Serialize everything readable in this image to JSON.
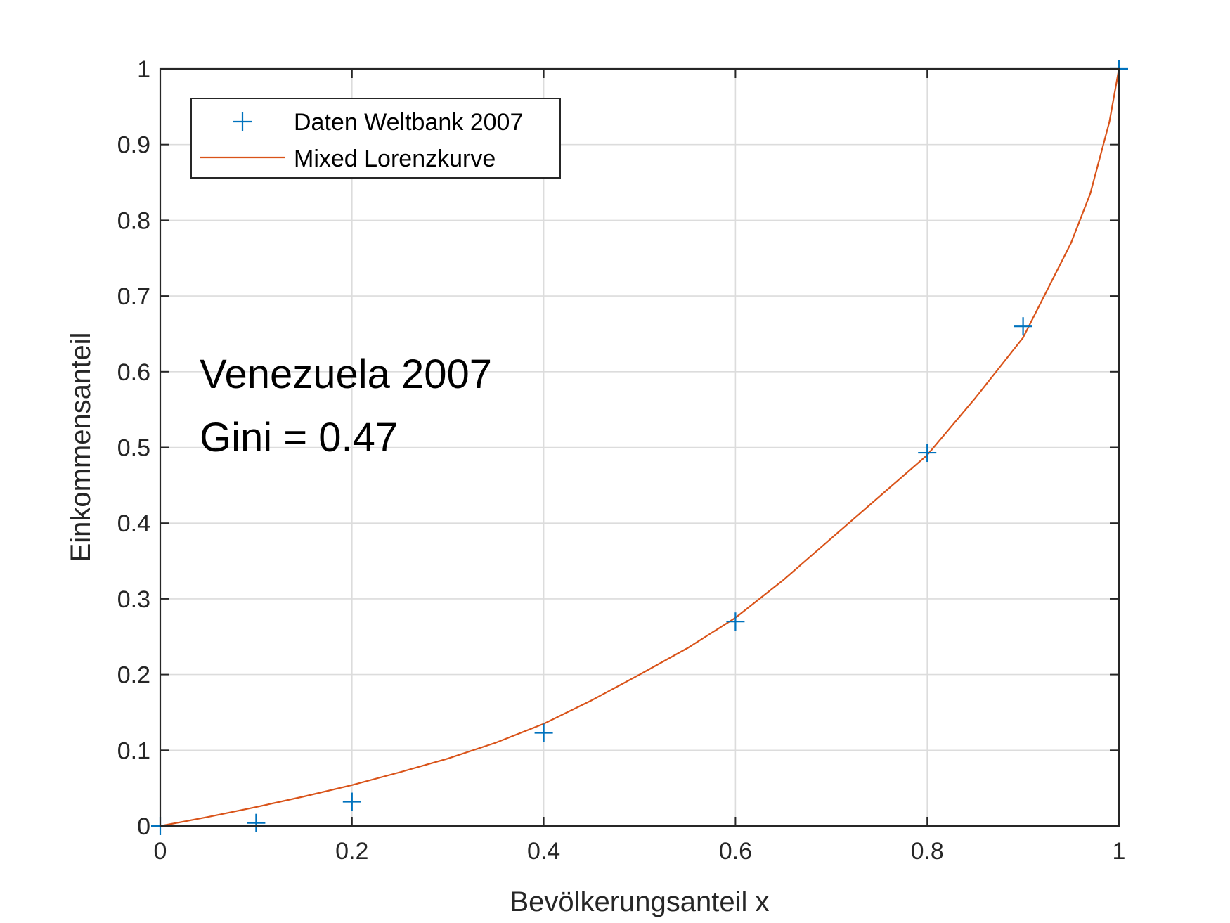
{
  "chart_data": {
    "type": "scatter",
    "xlabel": "Bevölkerungsanteil x",
    "ylabel": "Einkommensanteil",
    "xlim": [
      0,
      1
    ],
    "ylim": [
      0,
      1
    ],
    "xticks": [
      0,
      0.2,
      0.4,
      0.6,
      0.8,
      1
    ],
    "xtick_labels": [
      "0",
      "0.2",
      "0.4",
      "0.6",
      "0.8",
      "1"
    ],
    "yticks": [
      0,
      0.1,
      0.2,
      0.3,
      0.4,
      0.5,
      0.6,
      0.7,
      0.8,
      0.9,
      1
    ],
    "ytick_labels": [
      "0",
      "0.1",
      "0.2",
      "0.3",
      "0.4",
      "0.5",
      "0.6",
      "0.7",
      "0.8",
      "0.9",
      "1"
    ],
    "grid": true,
    "legend_position": "top-left",
    "annotations": [
      "Venezuela 2007",
      "Gini = 0.47"
    ],
    "series": [
      {
        "name": "Daten Weltbank 2007",
        "type": "scatter",
        "marker": "plus",
        "color": "#0072BD",
        "x": [
          0,
          0.1,
          0.2,
          0.4,
          0.6,
          0.8,
          0.9,
          1
        ],
        "y": [
          0,
          0.004,
          0.032,
          0.123,
          0.27,
          0.493,
          0.66,
          1
        ]
      },
      {
        "name": "Mixed Lorenzkurve",
        "type": "line",
        "color": "#D95319",
        "x": [
          0,
          0.05,
          0.1,
          0.15,
          0.2,
          0.25,
          0.3,
          0.35,
          0.4,
          0.45,
          0.5,
          0.55,
          0.6,
          0.65,
          0.7,
          0.75,
          0.8,
          0.85,
          0.9,
          0.95,
          0.97,
          0.99,
          1
        ],
        "y": [
          0,
          0.012,
          0.025,
          0.039,
          0.054,
          0.071,
          0.089,
          0.11,
          0.135,
          0.166,
          0.2,
          0.235,
          0.275,
          0.325,
          0.38,
          0.435,
          0.49,
          0.565,
          0.645,
          0.77,
          0.835,
          0.93,
          1
        ]
      }
    ]
  }
}
